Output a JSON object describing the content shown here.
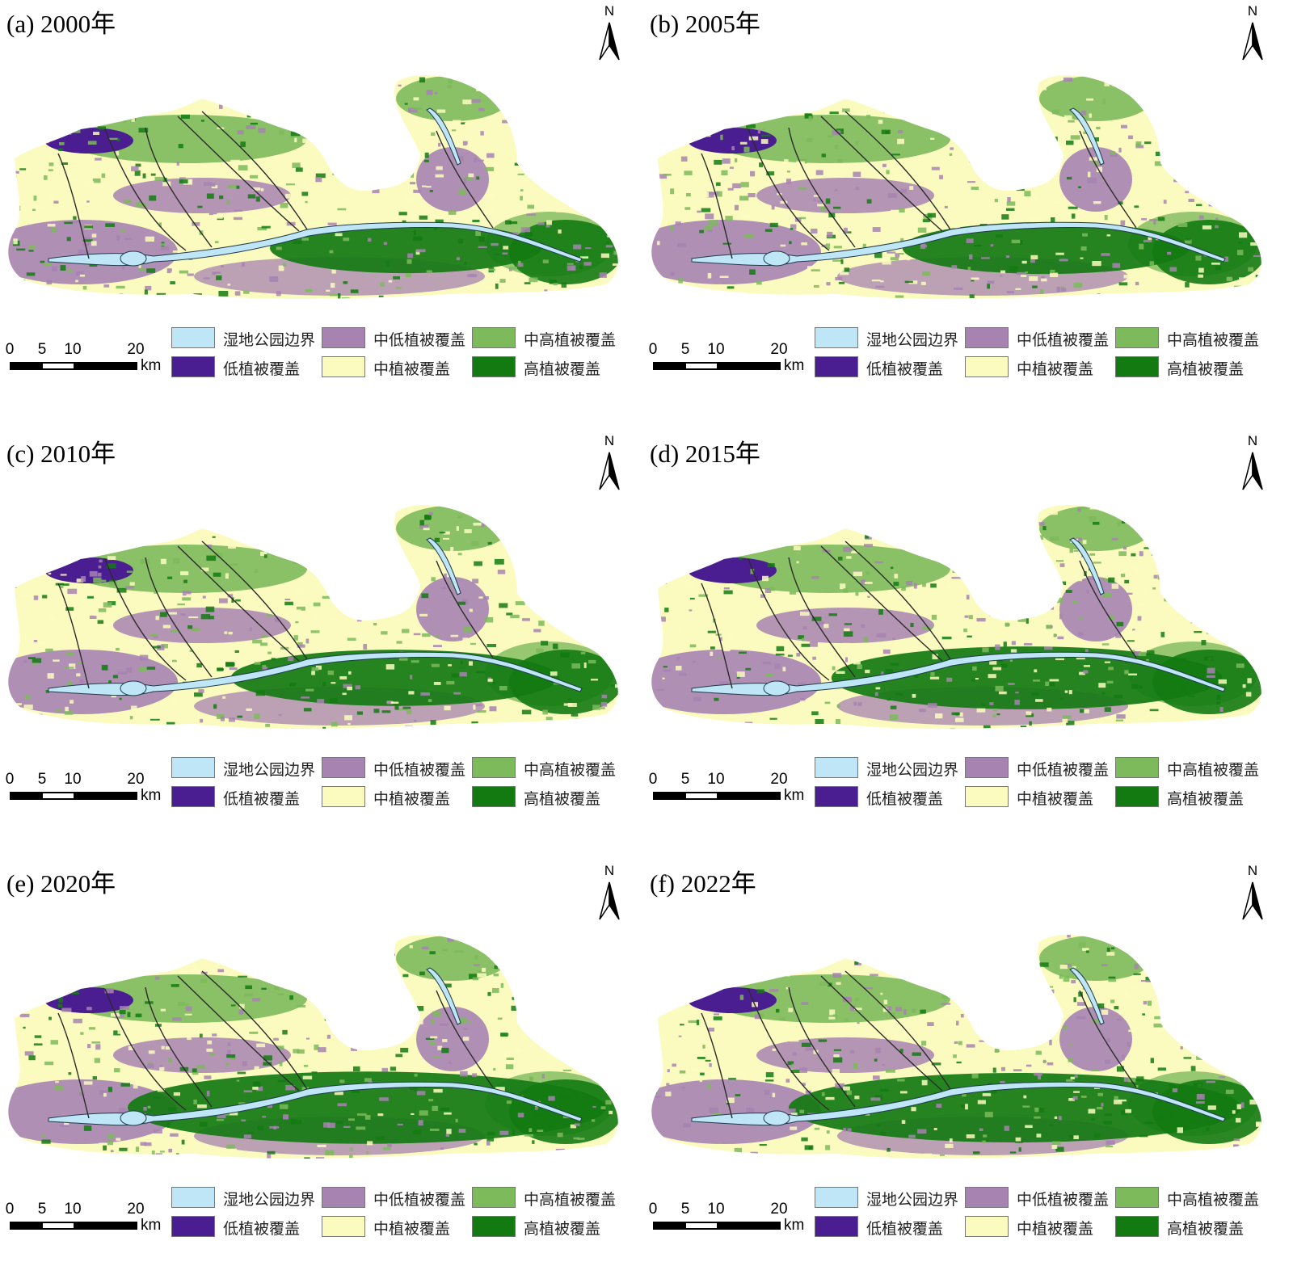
{
  "colors": {
    "wetland": "#bfe6f7",
    "low": "#4a1e91",
    "medium_low": "#a783b2",
    "medium": "#fcfbbf",
    "medium_high": "#7dba5c",
    "high": "#137a12"
  },
  "north_label": "N",
  "scale": {
    "ticks": [
      "0",
      "5",
      "10",
      "20"
    ],
    "unit": "km"
  },
  "legend": [
    {
      "key": "wetland",
      "label": "湿地公园边界"
    },
    {
      "key": "medium_low",
      "label": "中低植被覆盖"
    },
    {
      "key": "medium_high",
      "label": "中高植被覆盖"
    },
    {
      "key": "low",
      "label": "低植被覆盖"
    },
    {
      "key": "medium",
      "label": "中植被覆盖"
    },
    {
      "key": "high",
      "label": "高植被覆盖"
    }
  ],
  "panels": [
    {
      "title": "(a) 2000年",
      "high_share": 0.15
    },
    {
      "title": "(b) 2005年",
      "high_share": 0.18
    },
    {
      "title": "(c) 2010年",
      "high_share": 0.26
    },
    {
      "title": "(d) 2015年",
      "high_share": 0.38
    },
    {
      "title": "(e) 2020年",
      "high_share": 0.55
    },
    {
      "title": "(f) 2022年",
      "high_share": 0.5
    }
  ]
}
